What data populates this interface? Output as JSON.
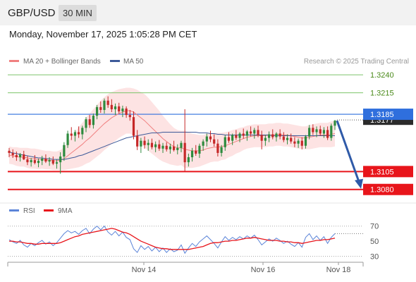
{
  "header": {
    "symbol": "GBP/USD",
    "timeframe": "30 MIN",
    "datetime": "Monday, November 17, 2025 1:05:28 PM CET"
  },
  "legend": {
    "ma20_label": "MA 20 + Bollinger Bands",
    "ma50_label": "MA 50",
    "credit": "Research © 2025 Trading Central"
  },
  "colors": {
    "ma20": "#f08080",
    "ma50": "#3d5a99",
    "band": "#fde3e3",
    "up": "#2e8b3e",
    "down": "#c62828",
    "green_line": "#7cc46a",
    "blue_line": "#2f6fdd",
    "red_line": "#e8151b",
    "arrow": "#2f5aa8",
    "rsi": "#5b84d8",
    "rsi_ma": "#e8151b"
  },
  "chart_data": {
    "type": "candlestick",
    "ylim": [
      1.3064,
      1.3251
    ],
    "levels": [
      {
        "value": 1.324,
        "label": "1.3240",
        "style": "green-line"
      },
      {
        "value": 1.3215,
        "label": "1.3215",
        "style": "green-line"
      },
      {
        "value": 1.3185,
        "label": "1.3185",
        "style": "blue-box"
      },
      {
        "value": 1.3177,
        "label": "1.3177",
        "style": "current-price"
      },
      {
        "value": 1.3105,
        "label": "1.3105",
        "style": "red-box"
      },
      {
        "value": 1.308,
        "label": "1.3080",
        "style": "red-box"
      }
    ],
    "x_ticks": [
      "Nov 14",
      "Nov 16",
      "Nov 18"
    ],
    "forecast_arrow": {
      "from": 1.3176,
      "to": 1.3083
    },
    "candles": [
      [
        1.3134,
        1.3138,
        1.3125,
        1.3131
      ],
      [
        1.3131,
        1.3136,
        1.3124,
        1.3128
      ],
      [
        1.3128,
        1.3133,
        1.312,
        1.3125
      ],
      [
        1.3125,
        1.3131,
        1.3119,
        1.3129
      ],
      [
        1.3129,
        1.3134,
        1.3121,
        1.3122
      ],
      [
        1.3122,
        1.3127,
        1.3114,
        1.3118
      ],
      [
        1.3118,
        1.3124,
        1.3112,
        1.3121
      ],
      [
        1.3121,
        1.3128,
        1.3115,
        1.3117
      ],
      [
        1.3117,
        1.3123,
        1.3111,
        1.312
      ],
      [
        1.312,
        1.3127,
        1.3114,
        1.3123
      ],
      [
        1.3123,
        1.3129,
        1.3117,
        1.3119
      ],
      [
        1.3119,
        1.3125,
        1.3113,
        1.3121
      ],
      [
        1.3121,
        1.3126,
        1.3114,
        1.3116
      ],
      [
        1.3116,
        1.3122,
        1.3109,
        1.3118
      ],
      [
        1.3118,
        1.3132,
        1.3102,
        1.3126
      ],
      [
        1.3126,
        1.3146,
        1.312,
        1.3142
      ],
      [
        1.3142,
        1.3162,
        1.3138,
        1.3158
      ],
      [
        1.3158,
        1.3167,
        1.3149,
        1.3155
      ],
      [
        1.3155,
        1.3163,
        1.3147,
        1.316
      ],
      [
        1.316,
        1.3168,
        1.3152,
        1.3157
      ],
      [
        1.3157,
        1.3169,
        1.315,
        1.3166
      ],
      [
        1.3166,
        1.3181,
        1.316,
        1.3178
      ],
      [
        1.3178,
        1.3184,
        1.3166,
        1.317
      ],
      [
        1.317,
        1.3186,
        1.3165,
        1.3183
      ],
      [
        1.3183,
        1.3198,
        1.3178,
        1.3195
      ],
      [
        1.3195,
        1.3203,
        1.3187,
        1.3191
      ],
      [
        1.3191,
        1.3207,
        1.3186,
        1.3204
      ],
      [
        1.3204,
        1.321,
        1.3194,
        1.3198
      ],
      [
        1.3198,
        1.3206,
        1.3188,
        1.3192
      ],
      [
        1.3192,
        1.32,
        1.3184,
        1.3196
      ],
      [
        1.3196,
        1.3201,
        1.3186,
        1.3189
      ],
      [
        1.3189,
        1.3197,
        1.3181,
        1.3193
      ],
      [
        1.3193,
        1.3196,
        1.318,
        1.3184
      ],
      [
        1.3184,
        1.3191,
        1.3176,
        1.3181
      ],
      [
        1.3181,
        1.3189,
        1.315,
        1.3155
      ],
      [
        1.3155,
        1.3163,
        1.3135,
        1.314
      ],
      [
        1.314,
        1.3152,
        1.3131,
        1.3148
      ],
      [
        1.3148,
        1.3154,
        1.3137,
        1.3142
      ],
      [
        1.3142,
        1.315,
        1.3134,
        1.3145
      ],
      [
        1.3145,
        1.3151,
        1.3136,
        1.3139
      ],
      [
        1.3139,
        1.3147,
        1.3132,
        1.3143
      ],
      [
        1.3143,
        1.3149,
        1.3134,
        1.3137
      ],
      [
        1.3137,
        1.3145,
        1.3131,
        1.3141
      ],
      [
        1.3141,
        1.3146,
        1.3133,
        1.3136
      ],
      [
        1.3136,
        1.3144,
        1.313,
        1.314
      ],
      [
        1.314,
        1.3148,
        1.3133,
        1.3135
      ],
      [
        1.3135,
        1.3143,
        1.3129,
        1.3138
      ],
      [
        1.3138,
        1.3148,
        1.3132,
        1.3145
      ],
      [
        1.3145,
        1.3192,
        1.3105,
        1.3118
      ],
      [
        1.3118,
        1.313,
        1.3112,
        1.3125
      ],
      [
        1.3125,
        1.3138,
        1.3119,
        1.3134
      ],
      [
        1.3134,
        1.3142,
        1.3127,
        1.313
      ],
      [
        1.313,
        1.3144,
        1.3124,
        1.3141
      ],
      [
        1.3141,
        1.315,
        1.3134,
        1.3147
      ],
      [
        1.3147,
        1.3158,
        1.314,
        1.3154
      ],
      [
        1.3154,
        1.3162,
        1.3146,
        1.315
      ],
      [
        1.315,
        1.3157,
        1.314,
        1.3144
      ],
      [
        1.3144,
        1.315,
        1.3126,
        1.3131
      ],
      [
        1.3131,
        1.3142,
        1.3126,
        1.3139
      ],
      [
        1.3139,
        1.3156,
        1.3134,
        1.3153
      ],
      [
        1.3153,
        1.316,
        1.3145,
        1.3148
      ],
      [
        1.3148,
        1.3158,
        1.3142,
        1.3156
      ],
      [
        1.3156,
        1.3163,
        1.3149,
        1.3152
      ],
      [
        1.3152,
        1.316,
        1.3146,
        1.3158
      ],
      [
        1.3158,
        1.3165,
        1.3151,
        1.3155
      ],
      [
        1.3155,
        1.3163,
        1.3148,
        1.3161
      ],
      [
        1.3161,
        1.3168,
        1.3154,
        1.3158
      ],
      [
        1.3158,
        1.3166,
        1.3151,
        1.3163
      ],
      [
        1.3163,
        1.3169,
        1.3153,
        1.3156
      ],
      [
        1.3156,
        1.3162,
        1.3136,
        1.3148
      ],
      [
        1.3148,
        1.3156,
        1.3141,
        1.3152
      ],
      [
        1.3152,
        1.3161,
        1.3146,
        1.3157
      ],
      [
        1.3157,
        1.3164,
        1.315,
        1.3153
      ],
      [
        1.3153,
        1.316,
        1.3147,
        1.3158
      ],
      [
        1.3158,
        1.3164,
        1.315,
        1.3154
      ],
      [
        1.3154,
        1.316,
        1.3146,
        1.3149
      ],
      [
        1.3149,
        1.3157,
        1.3143,
        1.3152
      ],
      [
        1.3152,
        1.3158,
        1.3144,
        1.3147
      ],
      [
        1.3147,
        1.3153,
        1.3139,
        1.3144
      ],
      [
        1.3144,
        1.3151,
        1.3138,
        1.3148
      ],
      [
        1.3148,
        1.3153,
        1.3136,
        1.3141
      ],
      [
        1.3141,
        1.3156,
        1.3137,
        1.3154
      ],
      [
        1.3154,
        1.317,
        1.315,
        1.3166
      ],
      [
        1.3166,
        1.3171,
        1.3156,
        1.316
      ],
      [
        1.316,
        1.3168,
        1.3153,
        1.3164
      ],
      [
        1.3164,
        1.3169,
        1.3155,
        1.3158
      ],
      [
        1.3158,
        1.3167,
        1.3152,
        1.3163
      ],
      [
        1.3163,
        1.3168,
        1.3149,
        1.3152
      ],
      [
        1.3152,
        1.3172,
        1.3148,
        1.3169
      ],
      [
        1.3169,
        1.3177,
        1.3163,
        1.3176
      ]
    ],
    "ma20": [
      1.3128,
      1.3127,
      1.3126,
      1.3125,
      1.3125,
      1.3124,
      1.3123,
      1.3123,
      1.3122,
      1.3122,
      1.3121,
      1.3121,
      1.312,
      1.312,
      1.3121,
      1.3123,
      1.3127,
      1.3131,
      1.3135,
      1.3139,
      1.3143,
      1.3148,
      1.3152,
      1.3157,
      1.3162,
      1.3167,
      1.3172,
      1.3176,
      1.318,
      1.3183,
      1.3186,
      1.3188,
      1.319,
      1.319,
      1.3188,
      1.3184,
      1.318,
      1.3176,
      1.3171,
      1.3166,
      1.3161,
      1.3156,
      1.3151,
      1.3147,
      1.3143,
      1.314,
      1.3138,
      1.3138,
      1.3136,
      1.3135,
      1.3134,
      1.3134,
      1.3134,
      1.3135,
      1.3137,
      1.3138,
      1.3139,
      1.3139,
      1.314,
      1.3141,
      1.3143,
      1.3145,
      1.3147,
      1.3149,
      1.3151,
      1.3153,
      1.3154,
      1.3155,
      1.3155,
      1.3155,
      1.3155,
      1.3156,
      1.3156,
      1.3157,
      1.3157,
      1.3156,
      1.3156,
      1.3155,
      1.3154,
      1.3153,
      1.3152,
      1.3152,
      1.3153,
      1.3154,
      1.3155,
      1.3156,
      1.3156,
      1.3156,
      1.3157,
      1.3158
    ],
    "ma50": [
      1.3132,
      1.3131,
      1.313,
      1.3129,
      1.3128,
      1.3127,
      1.3126,
      1.3125,
      1.3124,
      1.3124,
      1.3123,
      1.3123,
      1.3122,
      1.3122,
      1.3122,
      1.3122,
      1.3123,
      1.3124,
      1.3125,
      1.3127,
      1.3128,
      1.313,
      1.3132,
      1.3134,
      1.3136,
      1.3138,
      1.314,
      1.3142,
      1.3144,
      1.3146,
      1.3148,
      1.315,
      1.3152,
      1.3153,
      1.3154,
      1.3155,
      1.3156,
      1.3157,
      1.3158,
      1.3159,
      1.3159,
      1.3159,
      1.316,
      1.316,
      1.316,
      1.316,
      1.316,
      1.316,
      1.316,
      1.316,
      1.316,
      1.316,
      1.3159,
      1.3159,
      1.3159,
      1.3158,
      1.3158,
      1.3157,
      1.3157,
      1.3156,
      1.3156,
      1.3156,
      1.3156,
      1.3156,
      1.3156,
      1.3156,
      1.3156,
      1.3156,
      1.3156,
      1.3156,
      1.3156,
      1.3156,
      1.3155,
      1.3155,
      1.3155,
      1.3155,
      1.3155,
      1.3155,
      1.3155,
      1.3155,
      1.3155,
      1.3155,
      1.3155,
      1.3155,
      1.3155,
      1.3155,
      1.3155,
      1.3155,
      1.3155,
      1.3155
    ],
    "band_width": [
      0.0012,
      0.0012,
      0.0013,
      0.0013,
      0.0013,
      0.0014,
      0.0014,
      0.0014,
      0.0014,
      0.0013,
      0.0013,
      0.0013,
      0.0013,
      0.0013,
      0.0014,
      0.0016,
      0.0019,
      0.0022,
      0.0025,
      0.0028,
      0.003,
      0.0032,
      0.0034,
      0.0035,
      0.0036,
      0.0037,
      0.0037,
      0.0037,
      0.0036,
      0.0035,
      0.0034,
      0.0033,
      0.0032,
      0.0032,
      0.0033,
      0.0035,
      0.0036,
      0.0037,
      0.0037,
      0.0036,
      0.0035,
      0.0034,
      0.0032,
      0.003,
      0.0028,
      0.0026,
      0.0025,
      0.0024,
      0.0026,
      0.0025,
      0.0024,
      0.0023,
      0.0022,
      0.0021,
      0.0021,
      0.002,
      0.002,
      0.002,
      0.0019,
      0.0019,
      0.0018,
      0.0018,
      0.0017,
      0.0017,
      0.0016,
      0.0016,
      0.0016,
      0.0016,
      0.0016,
      0.0016,
      0.0016,
      0.0016,
      0.0016,
      0.0016,
      0.0016,
      0.0016,
      0.0016,
      0.0016,
      0.0016,
      0.0016,
      0.0016,
      0.0016,
      0.0017,
      0.0017,
      0.0017,
      0.0017,
      0.0017,
      0.0017,
      0.0018,
      0.0018
    ],
    "rsi": {
      "label": "RSI",
      "ma_label": "9MA",
      "ticks": [
        70,
        50,
        30
      ],
      "ylim": [
        22,
        80
      ],
      "values": [
        52,
        49,
        47,
        51,
        45,
        42,
        47,
        44,
        48,
        51,
        46,
        49,
        44,
        48,
        54,
        60,
        64,
        61,
        63,
        59,
        64,
        67,
        60,
        66,
        70,
        65,
        70,
        62,
        58,
        63,
        57,
        62,
        55,
        52,
        40,
        35,
        44,
        39,
        43,
        37,
        42,
        36,
        41,
        35,
        40,
        36,
        38,
        45,
        34,
        41,
        47,
        43,
        49,
        53,
        57,
        52,
        47,
        41,
        49,
        56,
        51,
        55,
        52,
        56,
        53,
        57,
        54,
        58,
        52,
        45,
        49,
        53,
        50,
        54,
        51,
        47,
        50,
        46,
        43,
        48,
        42,
        55,
        60,
        52,
        57,
        51,
        56,
        47,
        55,
        60
      ],
      "ma": [
        50,
        50,
        49,
        49,
        48,
        47,
        47,
        46,
        46,
        47,
        47,
        47,
        47,
        47,
        48,
        50,
        52,
        54,
        56,
        57,
        59,
        60,
        61,
        62,
        63,
        64,
        65,
        66,
        67,
        66,
        64,
        62,
        61,
        59,
        56,
        53,
        50,
        48,
        46,
        44,
        42,
        41,
        40,
        40,
        39,
        39,
        39,
        39,
        39,
        39,
        40,
        41,
        42,
        43,
        45,
        47,
        48,
        48,
        49,
        50,
        50,
        51,
        51,
        52,
        53,
        54,
        54,
        55,
        54,
        53,
        52,
        51,
        51,
        51,
        50,
        50,
        49,
        49,
        48,
        48,
        47,
        48,
        49,
        50,
        51,
        51,
        52,
        52,
        53,
        54
      ]
    }
  }
}
